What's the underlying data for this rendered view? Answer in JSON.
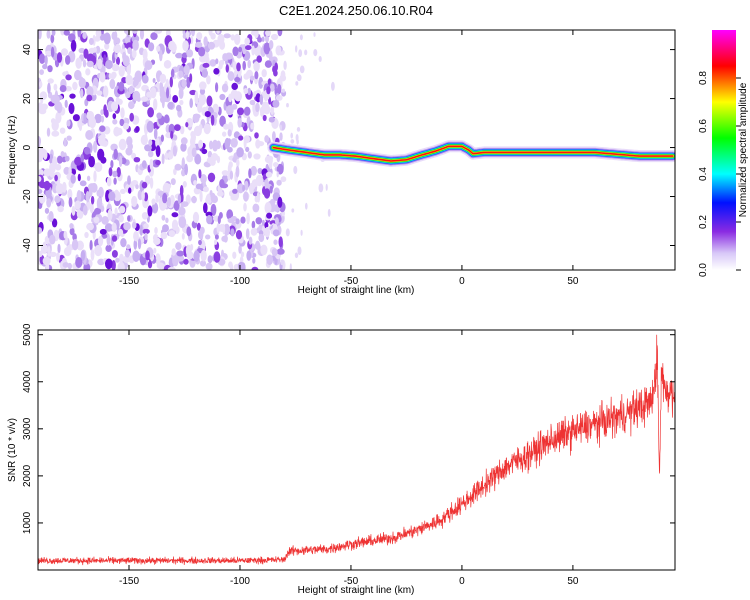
{
  "title": "C2E1.2024.250.06.10.R04",
  "chart_data": [
    {
      "type": "heatmap",
      "xlabel": "Height of straight line (km)",
      "ylabel": "Frequency (Hz)",
      "xlim": [
        -191,
        96
      ],
      "ylim": [
        -50,
        48
      ],
      "xticks": [
        -150,
        -100,
        -50,
        0,
        50
      ],
      "yticks": [
        -40,
        -20,
        0,
        20,
        40
      ],
      "noise_region_x": [
        -191,
        -83
      ],
      "tone_track": {
        "x": [
          -85,
          -78,
          -70,
          -62,
          -55,
          -48,
          -40,
          -32,
          -25,
          -18,
          -12,
          -6,
          0,
          3,
          5,
          10,
          20,
          40,
          60,
          80,
          95
        ],
        "y": [
          0,
          -1,
          -2,
          -3,
          -3,
          -3.5,
          -4.5,
          -5.5,
          -5,
          -3,
          -1.5,
          0.5,
          0.5,
          -1,
          -2.5,
          -2,
          -2,
          -2,
          -2,
          -3.5,
          -3.5
        ]
      },
      "colorbar": {
        "label": "Normalized spectral amplitude",
        "range": [
          0.0,
          1.0
        ],
        "ticks": [
          "0.0",
          "0.2",
          "0.4",
          "0.6",
          "0.8"
        ],
        "tick_values": [
          0.0,
          0.2,
          0.4,
          0.6,
          0.8
        ]
      }
    },
    {
      "type": "line",
      "xlabel": "Height of straight line (km)",
      "ylabel": "SNR (10 * v/v)",
      "xlim": [
        -191,
        96
      ],
      "ylim": [
        0,
        5100
      ],
      "xticks": [
        -150,
        -100,
        -50,
        0,
        50
      ],
      "yticks": [
        1000,
        2000,
        3000,
        4000,
        5000
      ],
      "series": [
        {
          "color": "#ee3333",
          "x": [
            -191,
            -150,
            -100,
            -80,
            -78,
            -60,
            -50,
            -40,
            -30,
            -20,
            -10,
            0,
            10,
            20,
            30,
            40,
            50,
            60,
            70,
            80,
            86,
            88,
            89,
            90,
            91,
            96
          ],
          "values": [
            200,
            200,
            200,
            220,
            400,
            450,
            550,
            620,
            700,
            850,
            1050,
            1400,
            1800,
            2200,
            2450,
            2750,
            2950,
            3100,
            3250,
            3450,
            3600,
            4600,
            2000,
            4500,
            3800,
            3800
          ]
        }
      ]
    }
  ]
}
